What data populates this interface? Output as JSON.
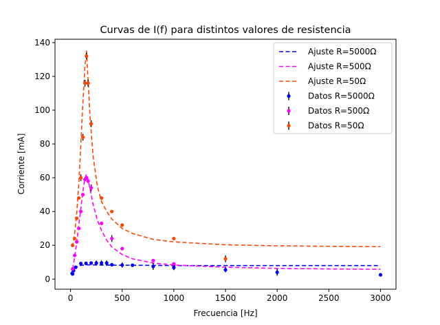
{
  "chart_data": {
    "type": "line",
    "title": "Curvas de I(f) para distintos valores de resistencia",
    "xlabel": "Frecuencia [Hz]",
    "ylabel": "Corriente [mA]",
    "xlim": [
      -150,
      3150
    ],
    "ylim": [
      -6,
      142
    ],
    "xticks": [
      0,
      500,
      1000,
      1500,
      2000,
      2500,
      3000
    ],
    "yticks": [
      0,
      20,
      40,
      60,
      80,
      100,
      120,
      140
    ],
    "grid": false,
    "legend_position": "upper-right",
    "legend": [
      "Ajuste R=5000Ω",
      "Ajuste R=500Ω",
      "Ajuste R=50Ω",
      "Datos R=5000Ω",
      "Datos R=500Ω",
      "Datos R=50Ω"
    ],
    "series": [
      {
        "name": "Ajuste R=5000Ω",
        "kind": "fit",
        "color": "#0000ff",
        "x": [
          0,
          20,
          50,
          100,
          150,
          200,
          300,
          500,
          800,
          1000,
          1500,
          2000,
          2500,
          3000
        ],
        "y": [
          3.0,
          5.0,
          7.0,
          8.1,
          8.4,
          8.4,
          8.3,
          8.2,
          8.1,
          8.0,
          8.0,
          8.0,
          8.0,
          8.0
        ]
      },
      {
        "name": "Ajuste R=500Ω",
        "kind": "fit",
        "color": "#ff00ff",
        "x": [
          20,
          40,
          60,
          80,
          100,
          120,
          140,
          155,
          170,
          190,
          220,
          260,
          300,
          350,
          400,
          500,
          600,
          800,
          1000,
          1500,
          2000,
          2500,
          3000
        ],
        "y": [
          6.0,
          13.0,
          22.0,
          32.0,
          42.0,
          52.0,
          60.0,
          62.0,
          59.0,
          53.0,
          44.0,
          35.0,
          29.0,
          23.0,
          19.0,
          14.5,
          12.0,
          9.5,
          8.3,
          7.0,
          6.3,
          6.0,
          5.8
        ]
      },
      {
        "name": "Ajuste R=50Ω",
        "kind": "fit",
        "color": "#ff4500",
        "x": [
          20,
          40,
          60,
          80,
          100,
          120,
          140,
          155,
          170,
          190,
          220,
          260,
          300,
          350,
          400,
          500,
          600,
          800,
          1000,
          1500,
          2000,
          2500,
          3000
        ],
        "y": [
          19.0,
          27.0,
          39.0,
          56.0,
          80.0,
          105.0,
          126.0,
          135.0,
          118.0,
          95.0,
          72.0,
          55.0,
          46.0,
          40.0,
          35.5,
          30.0,
          27.0,
          23.5,
          22.0,
          20.3,
          19.7,
          19.4,
          19.2
        ]
      },
      {
        "name": "Datos R=5000Ω",
        "kind": "data",
        "color": "#0000ff",
        "x": [
          20,
          30,
          50,
          100,
          150,
          200,
          250,
          300,
          350,
          400,
          500,
          600,
          800,
          1000,
          1500,
          2000,
          3000
        ],
        "y": [
          3.0,
          5.0,
          7.0,
          9.2,
          9.3,
          9.5,
          9.5,
          9.5,
          9.5,
          8.5,
          8.3,
          8.2,
          7.5,
          6.8,
          5.5,
          4.0,
          2.5
        ],
        "err": [
          0,
          0,
          0,
          0,
          0,
          0,
          1.5,
          1.5,
          1.5,
          0,
          1.5,
          0,
          2.0,
          1.5,
          1.5,
          2.0,
          0
        ]
      },
      {
        "name": "Datos R=500Ω",
        "kind": "data",
        "color": "#ff00ff",
        "x": [
          20,
          40,
          60,
          80,
          100,
          120,
          140,
          155,
          170,
          200,
          300,
          400,
          500,
          800,
          1000
        ],
        "y": [
          6.0,
          14.0,
          22.0,
          30.0,
          40.0,
          50.0,
          59.0,
          60.0,
          58.0,
          54.0,
          33.0,
          24.0,
          18.0,
          11.0,
          9.0
        ],
        "err": [
          0,
          0,
          0,
          0,
          0,
          0,
          0,
          0,
          0,
          2.0,
          0,
          2.0,
          0,
          0,
          0
        ]
      },
      {
        "name": "Datos R=50Ω",
        "kind": "data",
        "color": "#ff4500",
        "x": [
          20,
          40,
          60,
          80,
          100,
          120,
          140,
          155,
          170,
          200,
          300,
          400,
          500,
          1000,
          1500
        ],
        "y": [
          20.0,
          24.0,
          36.0,
          48.0,
          60.0,
          84.0,
          116.0,
          132.0,
          116.0,
          92.0,
          48.0,
          40.0,
          32.0,
          24.0,
          12.0
        ],
        "err": [
          0,
          0,
          0,
          0,
          2.0,
          2.0,
          2.0,
          2.0,
          2.0,
          2.0,
          0,
          0,
          0,
          0,
          2.0
        ]
      }
    ]
  }
}
